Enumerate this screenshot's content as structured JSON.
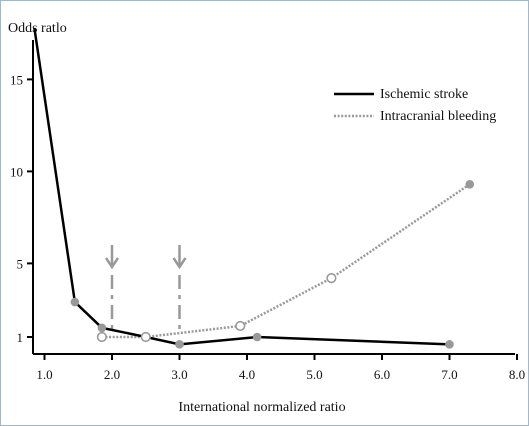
{
  "chart_data": {
    "type": "line",
    "ylabel": "Odds ratlo",
    "xlabel": "International normalized ratio",
    "xlim": [
      0.8,
      8.0
    ],
    "ylim": [
      0,
      20
    ],
    "x_ticks": [
      {
        "value": 1.0,
        "label": "1.0"
      },
      {
        "value": 2.0,
        "label": "2.0"
      },
      {
        "value": 3.0,
        "label": "3.0"
      },
      {
        "value": 4.0,
        "label": "4.0"
      },
      {
        "value": 5.0,
        "label": "5.0"
      },
      {
        "value": 6.0,
        "label": "6.0"
      },
      {
        "value": 7.0,
        "label": "7.0"
      },
      {
        "value": 8.0,
        "label": "8.0"
      }
    ],
    "y_ticks": [
      {
        "value": 1,
        "label": "1"
      },
      {
        "value": 5,
        "label": "5"
      },
      {
        "value": 10,
        "label": "10"
      },
      {
        "value": 15,
        "label": "15"
      }
    ],
    "legend_position": "top-right",
    "grid": false,
    "series": [
      {
        "name": "Ischemic stroke",
        "style": "solid",
        "color": "#000000",
        "marker_color": "#999999",
        "points": [
          {
            "x": 0.85,
            "y": 17.8,
            "marker": "none"
          },
          {
            "x": 1.45,
            "y": 2.9,
            "marker": "filled"
          },
          {
            "x": 1.85,
            "y": 1.5,
            "marker": "filled"
          },
          {
            "x": 2.5,
            "y": 1.0,
            "marker": "none"
          },
          {
            "x": 3.0,
            "y": 0.6,
            "marker": "filled"
          },
          {
            "x": 4.15,
            "y": 1.0,
            "marker": "filled"
          },
          {
            "x": 7.0,
            "y": 0.6,
            "marker": "filled"
          }
        ]
      },
      {
        "name": "Intracranial bleeding",
        "style": "dotted",
        "color": "#999999",
        "points": [
          {
            "x": 1.85,
            "y": 1.0,
            "marker": "open"
          },
          {
            "x": 2.5,
            "y": 1.0,
            "marker": "open"
          },
          {
            "x": 3.9,
            "y": 1.6,
            "marker": "open"
          },
          {
            "x": 5.25,
            "y": 4.2,
            "marker": "open"
          },
          {
            "x": 7.3,
            "y": 9.3,
            "marker": "filled"
          }
        ]
      }
    ],
    "annotations": [
      {
        "type": "down-arrow",
        "x": 2.0,
        "y_from": 6.0,
        "y_to": 1.0,
        "color": "#999999"
      },
      {
        "type": "down-arrow",
        "x": 3.0,
        "y_from": 6.0,
        "y_to": 1.0,
        "color": "#999999"
      }
    ]
  }
}
